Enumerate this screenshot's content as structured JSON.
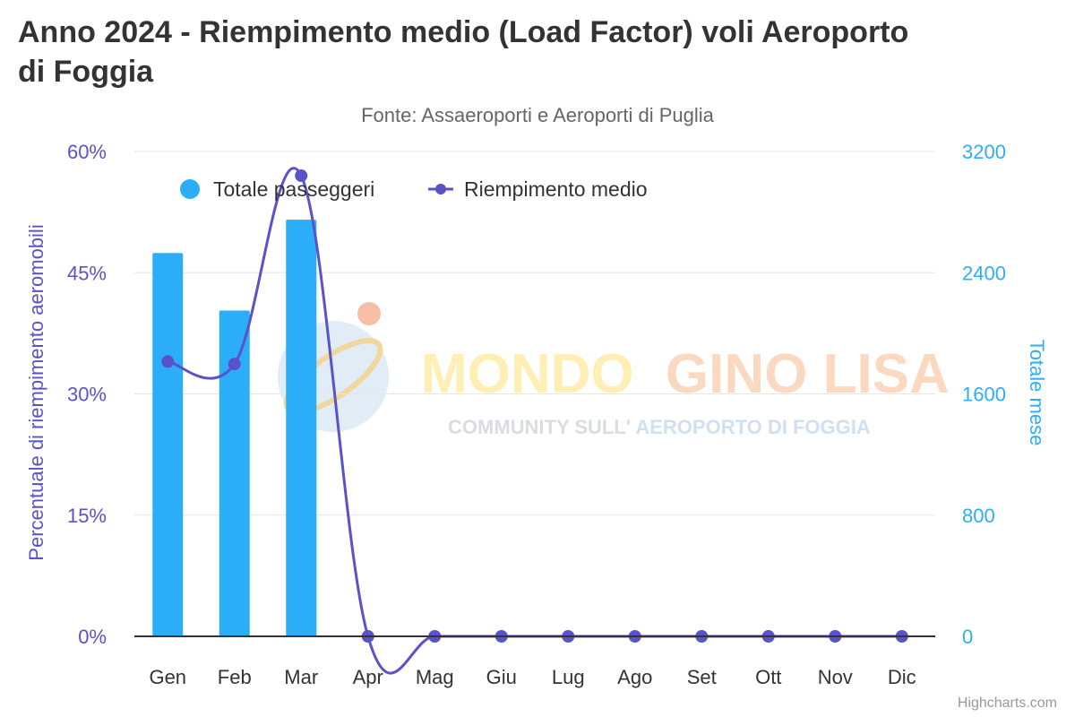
{
  "title": "Anno 2024 - Riempimento medio (Load Factor) voli Aeroporto di Foggia",
  "subtitle": "Fonte: Assaeroporti e Aeroporti di Puglia",
  "credits": "Highcharts.com",
  "watermark": {
    "line1_a": "MONDO",
    "line1_b": "GINO LISA",
    "line2_a": "COMMUNITY SULL'",
    "line2_b": "AEROPORTO DI FOGGIA"
  },
  "colors": {
    "bars": "#2BAEF7",
    "line": "#5A52C8",
    "grid": "#e6e6e6",
    "watermark_yellow": "#FFE27A",
    "watermark_orange": "#F9B98E",
    "watermark_gray": "#B9C2CC",
    "watermark_blue": "#A8C8E8"
  },
  "chart_data": {
    "type": "bar+line",
    "categories": [
      "Gen",
      "Feb",
      "Mar",
      "Apr",
      "Mag",
      "Giu",
      "Lug",
      "Ago",
      "Set",
      "Ott",
      "Nov",
      "Dic"
    ],
    "series": [
      {
        "name": "Totale passeggeri",
        "type": "bar",
        "axis": "right",
        "values": [
          2530,
          2150,
          2750,
          0,
          0,
          0,
          0,
          0,
          0,
          0,
          0,
          0
        ]
      },
      {
        "name": "Riempimento medio",
        "type": "line",
        "axis": "left",
        "unit": "%",
        "values": [
          34.0,
          33.7,
          57.0,
          0,
          0,
          0,
          0,
          0,
          0,
          0,
          0,
          0
        ]
      }
    ],
    "y_left": {
      "label": "Percentuale di riempimento aeromobili",
      "range": [
        0,
        60
      ],
      "ticks": [
        "0%",
        "15%",
        "30%",
        "45%",
        "60%"
      ],
      "tick_values": [
        0,
        15,
        30,
        45,
        60
      ]
    },
    "y_right": {
      "label": "Totale mese",
      "range": [
        0,
        3200
      ],
      "ticks": [
        "0",
        "800",
        "1600",
        "2400",
        "3200"
      ],
      "tick_values": [
        0,
        800,
        1600,
        2400,
        3200
      ]
    },
    "grid": true,
    "legend_position": "top-left"
  }
}
